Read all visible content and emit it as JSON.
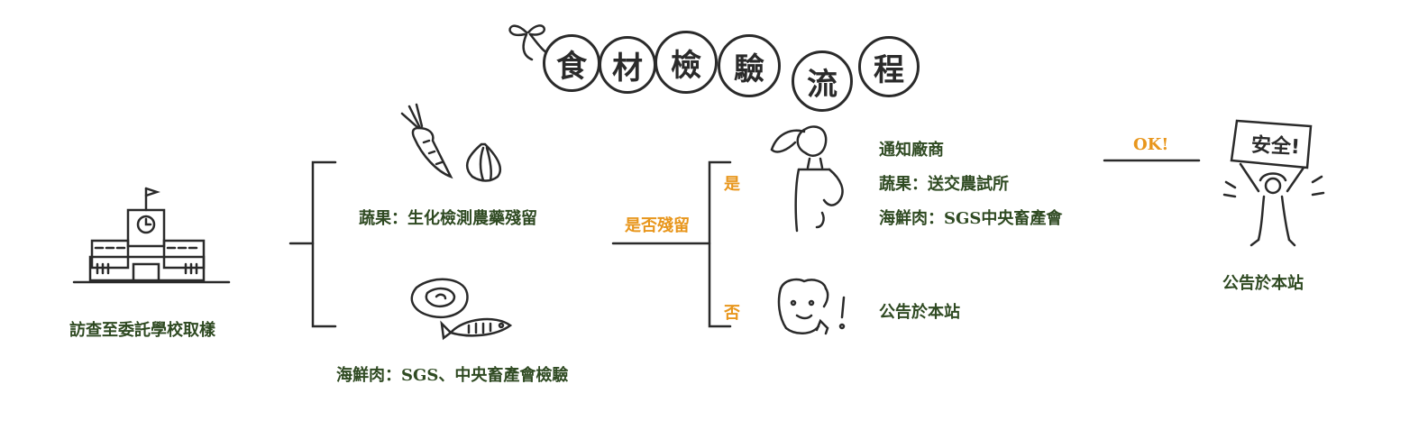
{
  "title": {
    "chars": [
      "食",
      "材",
      "檢",
      "驗",
      "流",
      "程"
    ]
  },
  "nodes": {
    "start": {
      "label": "訪查至委託學校取樣",
      "icon": "school-building-icon"
    },
    "veg": {
      "label": "蔬果：生化檢測農藥殘留",
      "icon": "carrot-garlic-icon"
    },
    "seafood": {
      "label": "海鮮肉：SGS、中央畜產會檢驗",
      "icon": "meat-fish-icon"
    },
    "decision": {
      "label": "是否殘留"
    },
    "yes": {
      "label": "是"
    },
    "no": {
      "label": "否"
    },
    "notify": {
      "lines": [
        "通知廠商",
        "蔬果：送交農試所",
        "海鮮肉：SGS中央畜產會"
      ],
      "icon": "thinking-person-icon"
    },
    "announce_no": {
      "label": "公告於本站",
      "icon": "surprised-face-icon"
    },
    "ok": {
      "label": "OK!"
    },
    "final": {
      "label": "公告於本站",
      "icon": "person-holding-safe-sign-icon",
      "sign_text": "安全!"
    }
  },
  "colors": {
    "green": "#2f4a22",
    "orange": "#e8961c",
    "ink": "#2a2a2a"
  }
}
